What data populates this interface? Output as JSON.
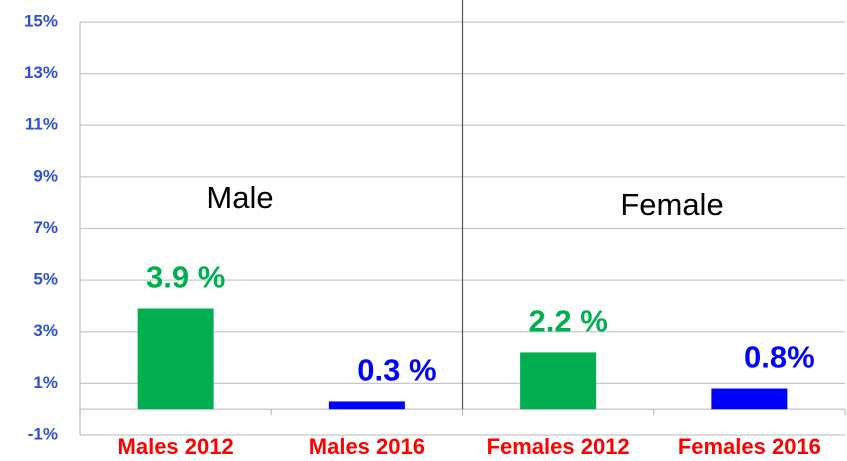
{
  "chart_data": {
    "type": "bar",
    "categories": [
      "Males 2012",
      "Males 2016",
      "Females 2012",
      "Females 2016"
    ],
    "values": [
      3.9,
      0.3,
      2.2,
      0.8
    ],
    "value_labels": [
      "3.9 %",
      "0.3 %",
      "2.2 %",
      "0.8%"
    ],
    "colors": [
      "#00b050",
      "#0000ff",
      "#00b050",
      "#0000ff"
    ],
    "ylim": [
      -1,
      15
    ],
    "yticks": [
      {
        "value": -1,
        "label": "-1%"
      },
      {
        "value": 1,
        "label": "1%"
      },
      {
        "value": 3,
        "label": "3%"
      },
      {
        "value": 5,
        "label": "5%"
      },
      {
        "value": 7,
        "label": "7%"
      },
      {
        "value": 9,
        "label": "9%"
      },
      {
        "value": 11,
        "label": "11%"
      },
      {
        "value": 13,
        "label": "13%"
      },
      {
        "value": 15,
        "label": "15%"
      }
    ],
    "grid": true,
    "annotations": [
      {
        "text": "Male"
      },
      {
        "text": "Female"
      }
    ]
  }
}
